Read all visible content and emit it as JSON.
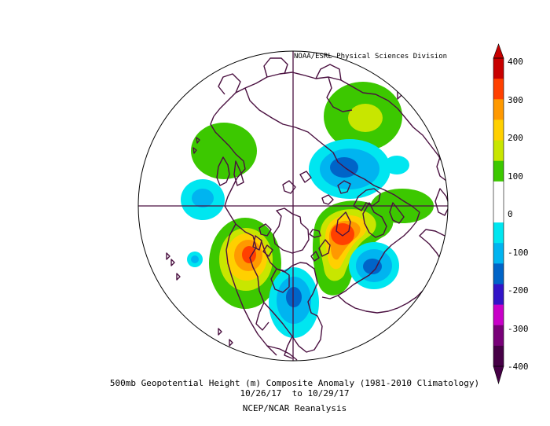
{
  "credit": "NOAA/ESRL Physical Sciences Division",
  "caption": {
    "line1": "500mb Geopotential Height (m) Composite Anomaly (1981-2010 Climatology)",
    "line2": "10/26/17  to 10/29/17",
    "line3": "NCEP/NCAR Reanalysis"
  },
  "colorbar": {
    "labels": [
      "400",
      "300",
      "200",
      "100",
      "0",
      "-100",
      "-200",
      "-300",
      "-400"
    ],
    "colors": [
      "#c80000",
      "#ff4000",
      "#ff9900",
      "#ffd000",
      "#c8e600",
      "#3cc800",
      "#ffffff",
      "#ffffff",
      "#00e6f0",
      "#00b4f0",
      "#0064c8",
      "#3214c8",
      "#c800c8",
      "#780078",
      "#460046"
    ]
  },
  "map": {
    "projection": "North Polar Stereographic",
    "land_outline_color": "#4a1040",
    "anomaly_features": [
      {
        "sign": "positive",
        "peak_m": 260,
        "region": "western North America"
      },
      {
        "sign": "positive",
        "peak_m": 360,
        "region": "western Europe"
      },
      {
        "sign": "positive",
        "peak_m": 110,
        "region": "eastern Siberia"
      },
      {
        "sign": "positive",
        "peak_m": 110,
        "region": "Alaska"
      },
      {
        "sign": "negative",
        "peak_m": -190,
        "region": "eastern North America"
      },
      {
        "sign": "negative",
        "peak_m": -200,
        "region": "central Russia"
      },
      {
        "sign": "negative",
        "peak_m": -180,
        "region": "Mediterranean"
      },
      {
        "sign": "negative",
        "peak_m": -120,
        "region": "western Pacific"
      }
    ]
  }
}
